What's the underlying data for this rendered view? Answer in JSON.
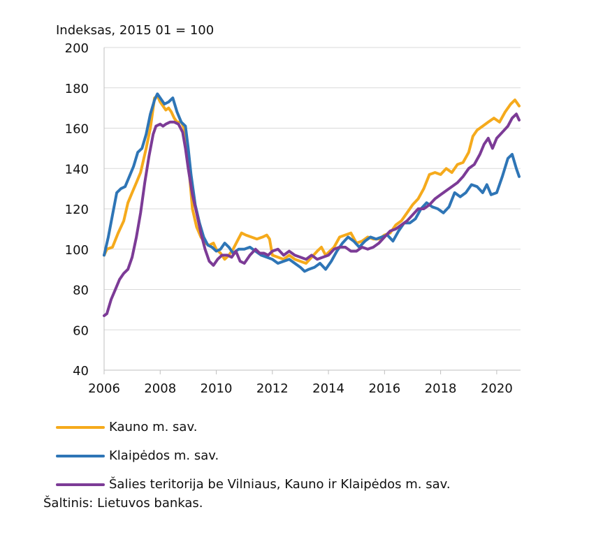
{
  "chart_data": {
    "type": "line",
    "ylabel": "Indeksas, 2015 01 = 100",
    "ylim": [
      40,
      200
    ],
    "yticks": [
      40,
      60,
      80,
      100,
      120,
      140,
      160,
      180,
      200
    ],
    "xlim": [
      2006,
      2020.85
    ],
    "xticks": [
      2006,
      2008,
      2010,
      2012,
      2014,
      2016,
      2018,
      2020
    ],
    "grid": "horizontal",
    "legend_position": "bottom",
    "series": [
      {
        "name": "Kauno m. sav.",
        "color": "#F5AA1C",
        "points": [
          [
            2006.0,
            97
          ],
          [
            2006.1,
            100
          ],
          [
            2006.3,
            101
          ],
          [
            2006.5,
            108
          ],
          [
            2006.7,
            114
          ],
          [
            2006.85,
            123
          ],
          [
            2007.0,
            128
          ],
          [
            2007.15,
            133
          ],
          [
            2007.3,
            138
          ],
          [
            2007.5,
            150
          ],
          [
            2007.65,
            160
          ],
          [
            2007.8,
            175
          ],
          [
            2007.9,
            176
          ],
          [
            2008.0,
            173
          ],
          [
            2008.1,
            171
          ],
          [
            2008.2,
            169
          ],
          [
            2008.3,
            170
          ],
          [
            2008.4,
            168
          ],
          [
            2008.5,
            165
          ],
          [
            2008.6,
            163
          ],
          [
            2008.75,
            163
          ],
          [
            2008.85,
            160
          ],
          [
            2008.95,
            148
          ],
          [
            2009.05,
            136
          ],
          [
            2009.15,
            120
          ],
          [
            2009.3,
            111
          ],
          [
            2009.45,
            106
          ],
          [
            2009.6,
            103
          ],
          [
            2009.75,
            102
          ],
          [
            2009.9,
            103
          ],
          [
            2010.0,
            100
          ],
          [
            2010.15,
            98
          ],
          [
            2010.3,
            95
          ],
          [
            2010.45,
            97
          ],
          [
            2010.6,
            100
          ],
          [
            2010.75,
            104
          ],
          [
            2010.9,
            108
          ],
          [
            2011.05,
            107
          ],
          [
            2011.25,
            106
          ],
          [
            2011.45,
            105
          ],
          [
            2011.65,
            106
          ],
          [
            2011.8,
            107
          ],
          [
            2011.9,
            105
          ],
          [
            2012.0,
            97
          ],
          [
            2012.2,
            96
          ],
          [
            2012.4,
            95
          ],
          [
            2012.6,
            97
          ],
          [
            2012.8,
            95
          ],
          [
            2013.0,
            94
          ],
          [
            2013.2,
            93
          ],
          [
            2013.4,
            96
          ],
          [
            2013.6,
            99
          ],
          [
            2013.75,
            101
          ],
          [
            2013.9,
            97
          ],
          [
            2014.05,
            99
          ],
          [
            2014.2,
            101
          ],
          [
            2014.4,
            106
          ],
          [
            2014.6,
            107
          ],
          [
            2014.8,
            108
          ],
          [
            2015.0,
            103
          ],
          [
            2015.2,
            104
          ],
          [
            2015.4,
            106
          ],
          [
            2015.6,
            105
          ],
          [
            2015.8,
            105
          ],
          [
            2016.0,
            107
          ],
          [
            2016.2,
            108
          ],
          [
            2016.4,
            112
          ],
          [
            2016.6,
            114
          ],
          [
            2016.8,
            118
          ],
          [
            2017.0,
            122
          ],
          [
            2017.2,
            125
          ],
          [
            2017.4,
            130
          ],
          [
            2017.6,
            137
          ],
          [
            2017.8,
            138
          ],
          [
            2018.0,
            137
          ],
          [
            2018.2,
            140
          ],
          [
            2018.4,
            138
          ],
          [
            2018.6,
            142
          ],
          [
            2018.8,
            143
          ],
          [
            2019.0,
            148
          ],
          [
            2019.15,
            156
          ],
          [
            2019.3,
            159
          ],
          [
            2019.5,
            161
          ],
          [
            2019.7,
            163
          ],
          [
            2019.9,
            165
          ],
          [
            2020.1,
            163
          ],
          [
            2020.3,
            168
          ],
          [
            2020.5,
            172
          ],
          [
            2020.65,
            174
          ],
          [
            2020.8,
            171
          ]
        ]
      },
      {
        "name": "Klaipėdos m. sav.",
        "color": "#2E75B6",
        "points": [
          [
            2006.0,
            97
          ],
          [
            2006.15,
            106
          ],
          [
            2006.3,
            117
          ],
          [
            2006.45,
            128
          ],
          [
            2006.6,
            130
          ],
          [
            2006.75,
            131
          ],
          [
            2006.9,
            136
          ],
          [
            2007.05,
            141
          ],
          [
            2007.2,
            148
          ],
          [
            2007.35,
            150
          ],
          [
            2007.5,
            157
          ],
          [
            2007.65,
            167
          ],
          [
            2007.8,
            174
          ],
          [
            2007.9,
            177
          ],
          [
            2008.0,
            175
          ],
          [
            2008.15,
            172
          ],
          [
            2008.3,
            173
          ],
          [
            2008.45,
            175
          ],
          [
            2008.6,
            168
          ],
          [
            2008.75,
            163
          ],
          [
            2008.9,
            161
          ],
          [
            2009.0,
            150
          ],
          [
            2009.1,
            137
          ],
          [
            2009.25,
            122
          ],
          [
            2009.4,
            113
          ],
          [
            2009.55,
            106
          ],
          [
            2009.7,
            102
          ],
          [
            2009.85,
            101
          ],
          [
            2010.0,
            99
          ],
          [
            2010.15,
            100
          ],
          [
            2010.3,
            103
          ],
          [
            2010.45,
            101
          ],
          [
            2010.6,
            98
          ],
          [
            2010.8,
            100
          ],
          [
            2011.0,
            100
          ],
          [
            2011.2,
            101
          ],
          [
            2011.4,
            99
          ],
          [
            2011.6,
            97
          ],
          [
            2011.8,
            96
          ],
          [
            2012.0,
            95
          ],
          [
            2012.2,
            93
          ],
          [
            2012.4,
            94
          ],
          [
            2012.6,
            95
          ],
          [
            2012.8,
            93
          ],
          [
            2013.0,
            91
          ],
          [
            2013.15,
            89
          ],
          [
            2013.3,
            90
          ],
          [
            2013.5,
            91
          ],
          [
            2013.7,
            93
          ],
          [
            2013.9,
            90
          ],
          [
            2014.1,
            94
          ],
          [
            2014.3,
            99
          ],
          [
            2014.5,
            103
          ],
          [
            2014.7,
            106
          ],
          [
            2014.9,
            104
          ],
          [
            2015.1,
            101
          ],
          [
            2015.3,
            104
          ],
          [
            2015.5,
            106
          ],
          [
            2015.7,
            105
          ],
          [
            2015.9,
            106
          ],
          [
            2016.1,
            107
          ],
          [
            2016.3,
            104
          ],
          [
            2016.5,
            109
          ],
          [
            2016.7,
            113
          ],
          [
            2016.9,
            113
          ],
          [
            2017.1,
            115
          ],
          [
            2017.3,
            120
          ],
          [
            2017.5,
            123
          ],
          [
            2017.7,
            121
          ],
          [
            2017.9,
            120
          ],
          [
            2018.1,
            118
          ],
          [
            2018.3,
            121
          ],
          [
            2018.5,
            128
          ],
          [
            2018.7,
            126
          ],
          [
            2018.9,
            128
          ],
          [
            2019.1,
            132
          ],
          [
            2019.3,
            131
          ],
          [
            2019.5,
            128
          ],
          [
            2019.65,
            132
          ],
          [
            2019.8,
            127
          ],
          [
            2020.0,
            128
          ],
          [
            2020.2,
            136
          ],
          [
            2020.4,
            145
          ],
          [
            2020.55,
            147
          ],
          [
            2020.7,
            140
          ],
          [
            2020.8,
            136
          ]
        ]
      },
      {
        "name": "Šalies teritorija be Vilniaus, Kauno ir Klaipėdos m. sav.",
        "color": "#7C3B96",
        "points": [
          [
            2006.0,
            67
          ],
          [
            2006.1,
            68
          ],
          [
            2006.25,
            75
          ],
          [
            2006.4,
            80
          ],
          [
            2006.55,
            85
          ],
          [
            2006.7,
            88
          ],
          [
            2006.85,
            90
          ],
          [
            2007.0,
            96
          ],
          [
            2007.15,
            106
          ],
          [
            2007.3,
            118
          ],
          [
            2007.45,
            133
          ],
          [
            2007.6,
            146
          ],
          [
            2007.75,
            157
          ],
          [
            2007.85,
            161
          ],
          [
            2008.0,
            162
          ],
          [
            2008.1,
            161
          ],
          [
            2008.2,
            162
          ],
          [
            2008.35,
            163
          ],
          [
            2008.5,
            163
          ],
          [
            2008.65,
            162
          ],
          [
            2008.8,
            158
          ],
          [
            2008.9,
            150
          ],
          [
            2009.0,
            140
          ],
          [
            2009.15,
            127
          ],
          [
            2009.3,
            118
          ],
          [
            2009.45,
            108
          ],
          [
            2009.6,
            100
          ],
          [
            2009.75,
            94
          ],
          [
            2009.9,
            92
          ],
          [
            2010.05,
            95
          ],
          [
            2010.2,
            97
          ],
          [
            2010.4,
            97
          ],
          [
            2010.55,
            96
          ],
          [
            2010.7,
            99
          ],
          [
            2010.85,
            94
          ],
          [
            2011.0,
            93
          ],
          [
            2011.2,
            97
          ],
          [
            2011.4,
            100
          ],
          [
            2011.55,
            98
          ],
          [
            2011.7,
            98
          ],
          [
            2011.85,
            97
          ],
          [
            2012.0,
            99
          ],
          [
            2012.2,
            100
          ],
          [
            2012.4,
            97
          ],
          [
            2012.6,
            99
          ],
          [
            2012.8,
            97
          ],
          [
            2013.0,
            96
          ],
          [
            2013.2,
            95
          ],
          [
            2013.4,
            97
          ],
          [
            2013.6,
            95
          ],
          [
            2013.8,
            96
          ],
          [
            2014.0,
            97
          ],
          [
            2014.2,
            100
          ],
          [
            2014.4,
            101
          ],
          [
            2014.6,
            101
          ],
          [
            2014.8,
            99
          ],
          [
            2015.0,
            99
          ],
          [
            2015.2,
            101
          ],
          [
            2015.4,
            100
          ],
          [
            2015.6,
            101
          ],
          [
            2015.8,
            103
          ],
          [
            2016.0,
            106
          ],
          [
            2016.2,
            109
          ],
          [
            2016.4,
            110
          ],
          [
            2016.6,
            112
          ],
          [
            2016.8,
            114
          ],
          [
            2017.0,
            117
          ],
          [
            2017.2,
            120
          ],
          [
            2017.4,
            120
          ],
          [
            2017.6,
            122
          ],
          [
            2017.8,
            125
          ],
          [
            2018.0,
            127
          ],
          [
            2018.2,
            129
          ],
          [
            2018.4,
            131
          ],
          [
            2018.6,
            133
          ],
          [
            2018.8,
            136
          ],
          [
            2019.0,
            140
          ],
          [
            2019.2,
            142
          ],
          [
            2019.4,
            147
          ],
          [
            2019.55,
            152
          ],
          [
            2019.7,
            155
          ],
          [
            2019.85,
            150
          ],
          [
            2020.0,
            155
          ],
          [
            2020.2,
            158
          ],
          [
            2020.4,
            161
          ],
          [
            2020.55,
            165
          ],
          [
            2020.7,
            167
          ],
          [
            2020.8,
            164
          ]
        ]
      }
    ]
  },
  "source": "Šaltinis: Lietuvos bankas."
}
